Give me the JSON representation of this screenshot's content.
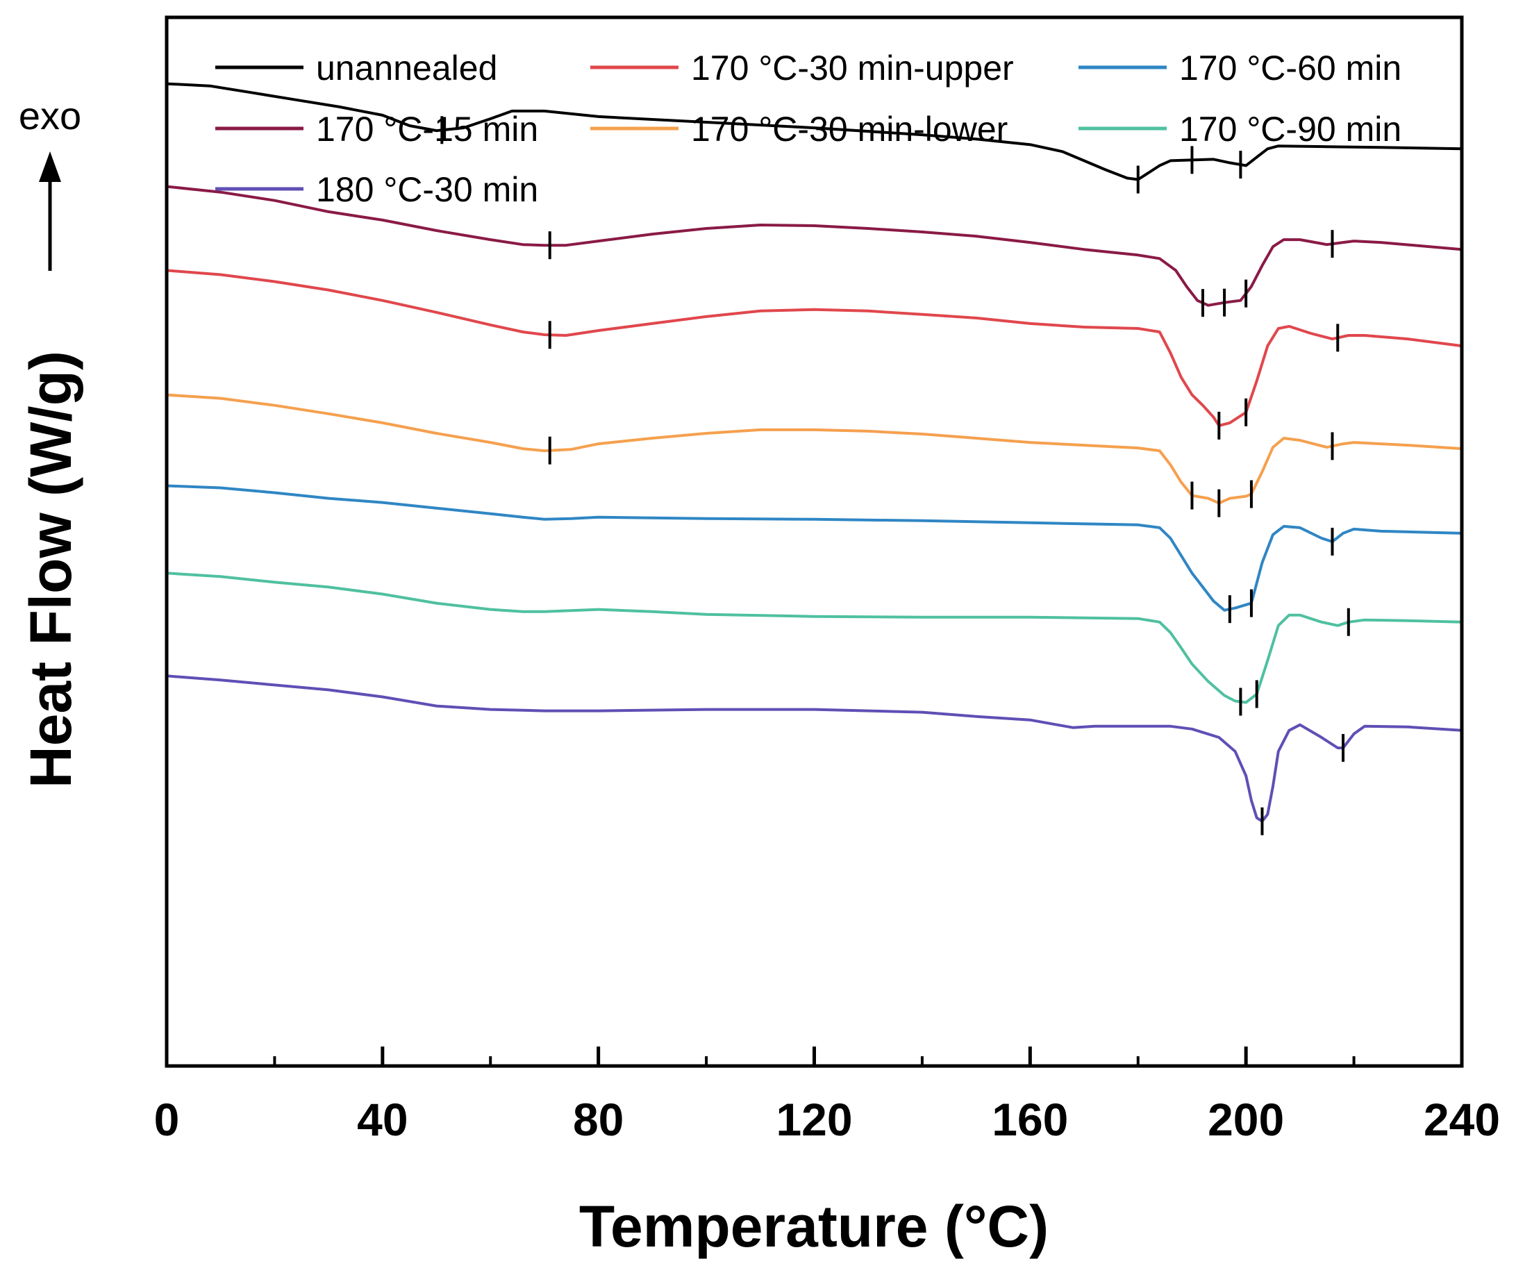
{
  "chart_data": {
    "type": "line",
    "title": "",
    "xlabel": "Temperature (°C)",
    "ylabel": "Heat Flow (W/g)",
    "exo_label": "exo",
    "xlim": [
      0,
      240
    ],
    "xticks": [
      0,
      40,
      80,
      120,
      160,
      200,
      240
    ],
    "xtick_labels": [
      "0",
      "40",
      "80",
      "120",
      "160",
      "200",
      "240"
    ],
    "y_units": "arbitrary (curves vertically offset)",
    "ylim": [
      0,
      15
    ],
    "legend_position": "top",
    "series": [
      {
        "name": "unannealed",
        "color": "#000000",
        "points": [
          [
            0,
            14.05
          ],
          [
            8,
            14.02
          ],
          [
            16,
            13.92
          ],
          [
            24,
            13.82
          ],
          [
            32,
            13.72
          ],
          [
            40,
            13.6
          ],
          [
            45,
            13.45
          ],
          [
            50,
            13.38
          ],
          [
            55,
            13.42
          ],
          [
            60,
            13.55
          ],
          [
            64,
            13.66
          ],
          [
            70,
            13.66
          ],
          [
            80,
            13.58
          ],
          [
            100,
            13.5
          ],
          [
            120,
            13.42
          ],
          [
            140,
            13.32
          ],
          [
            150,
            13.26
          ],
          [
            160,
            13.18
          ],
          [
            166,
            13.08
          ],
          [
            170,
            12.95
          ],
          [
            174,
            12.82
          ],
          [
            178,
            12.7
          ],
          [
            180,
            12.68
          ],
          [
            182,
            12.78
          ],
          [
            184,
            12.88
          ],
          [
            186,
            12.95
          ],
          [
            190,
            12.96
          ],
          [
            194,
            12.97
          ],
          [
            197,
            12.92
          ],
          [
            200,
            12.88
          ],
          [
            202,
            13.0
          ],
          [
            204,
            13.12
          ],
          [
            206,
            13.16
          ],
          [
            215,
            13.15
          ],
          [
            225,
            13.14
          ],
          [
            240,
            13.12
          ]
        ],
        "markers": [
          51,
          180,
          190,
          199
        ]
      },
      {
        "name": "170 °C-15 min",
        "color": "#8a1a46",
        "points": [
          [
            0,
            12.58
          ],
          [
            10,
            12.5
          ],
          [
            20,
            12.38
          ],
          [
            30,
            12.22
          ],
          [
            40,
            12.1
          ],
          [
            50,
            11.95
          ],
          [
            60,
            11.82
          ],
          [
            66,
            11.75
          ],
          [
            70,
            11.74
          ],
          [
            74,
            11.74
          ],
          [
            80,
            11.8
          ],
          [
            90,
            11.9
          ],
          [
            100,
            11.98
          ],
          [
            110,
            12.03
          ],
          [
            120,
            12.02
          ],
          [
            130,
            11.98
          ],
          [
            140,
            11.93
          ],
          [
            150,
            11.87
          ],
          [
            160,
            11.78
          ],
          [
            170,
            11.68
          ],
          [
            180,
            11.6
          ],
          [
            184,
            11.55
          ],
          [
            187,
            11.38
          ],
          [
            189,
            11.15
          ],
          [
            191,
            10.95
          ],
          [
            193,
            10.88
          ],
          [
            196,
            10.92
          ],
          [
            199,
            10.95
          ],
          [
            201,
            11.15
          ],
          [
            203,
            11.45
          ],
          [
            205,
            11.72
          ],
          [
            207,
            11.82
          ],
          [
            210,
            11.82
          ],
          [
            215,
            11.75
          ],
          [
            218,
            11.78
          ],
          [
            220,
            11.8
          ],
          [
            225,
            11.78
          ],
          [
            240,
            11.68
          ]
        ],
        "markers": [
          71,
          192,
          196,
          200,
          216
        ]
      },
      {
        "name": "170 °C-30 min-upper",
        "color": "#e0474c",
        "points": [
          [
            0,
            11.38
          ],
          [
            10,
            11.32
          ],
          [
            20,
            11.22
          ],
          [
            30,
            11.1
          ],
          [
            40,
            10.95
          ],
          [
            50,
            10.78
          ],
          [
            60,
            10.6
          ],
          [
            66,
            10.5
          ],
          [
            70,
            10.46
          ],
          [
            74,
            10.45
          ],
          [
            80,
            10.52
          ],
          [
            90,
            10.62
          ],
          [
            100,
            10.72
          ],
          [
            110,
            10.8
          ],
          [
            120,
            10.82
          ],
          [
            130,
            10.8
          ],
          [
            140,
            10.75
          ],
          [
            150,
            10.7
          ],
          [
            160,
            10.62
          ],
          [
            170,
            10.57
          ],
          [
            180,
            10.55
          ],
          [
            184,
            10.5
          ],
          [
            186,
            10.2
          ],
          [
            188,
            9.85
          ],
          [
            190,
            9.6
          ],
          [
            192,
            9.45
          ],
          [
            194,
            9.28
          ],
          [
            195,
            9.16
          ],
          [
            197,
            9.2
          ],
          [
            199,
            9.3
          ],
          [
            200,
            9.35
          ],
          [
            202,
            9.8
          ],
          [
            204,
            10.3
          ],
          [
            206,
            10.55
          ],
          [
            208,
            10.58
          ],
          [
            212,
            10.48
          ],
          [
            216,
            10.4
          ],
          [
            219,
            10.45
          ],
          [
            222,
            10.45
          ],
          [
            230,
            10.4
          ],
          [
            240,
            10.3
          ]
        ],
        "markers": [
          71,
          195,
          200,
          217
        ]
      },
      {
        "name": "170 °C-30 min-lower",
        "color": "#f5a04e",
        "points": [
          [
            0,
            9.6
          ],
          [
            10,
            9.55
          ],
          [
            20,
            9.45
          ],
          [
            30,
            9.33
          ],
          [
            40,
            9.2
          ],
          [
            50,
            9.05
          ],
          [
            60,
            8.92
          ],
          [
            66,
            8.83
          ],
          [
            70,
            8.8
          ],
          [
            75,
            8.82
          ],
          [
            80,
            8.9
          ],
          [
            90,
            8.98
          ],
          [
            100,
            9.05
          ],
          [
            110,
            9.1
          ],
          [
            120,
            9.1
          ],
          [
            130,
            9.08
          ],
          [
            140,
            9.04
          ],
          [
            150,
            8.98
          ],
          [
            160,
            8.92
          ],
          [
            170,
            8.88
          ],
          [
            180,
            8.84
          ],
          [
            184,
            8.8
          ],
          [
            186,
            8.6
          ],
          [
            188,
            8.35
          ],
          [
            190,
            8.16
          ],
          [
            193,
            8.12
          ],
          [
            195,
            8.05
          ],
          [
            197,
            8.12
          ],
          [
            200,
            8.15
          ],
          [
            201,
            8.18
          ],
          [
            203,
            8.5
          ],
          [
            205,
            8.85
          ],
          [
            207,
            8.98
          ],
          [
            210,
            8.95
          ],
          [
            215,
            8.85
          ],
          [
            218,
            8.9
          ],
          [
            220,
            8.92
          ],
          [
            230,
            8.88
          ],
          [
            240,
            8.83
          ]
        ],
        "markers": [
          71,
          190,
          195,
          201,
          216
        ]
      },
      {
        "name": "170 °C-60 min",
        "color": "#2f86c4",
        "points": [
          [
            0,
            8.3
          ],
          [
            10,
            8.27
          ],
          [
            20,
            8.2
          ],
          [
            30,
            8.12
          ],
          [
            40,
            8.06
          ],
          [
            50,
            7.98
          ],
          [
            60,
            7.9
          ],
          [
            66,
            7.85
          ],
          [
            70,
            7.82
          ],
          [
            75,
            7.83
          ],
          [
            80,
            7.85
          ],
          [
            100,
            7.83
          ],
          [
            120,
            7.82
          ],
          [
            140,
            7.8
          ],
          [
            160,
            7.77
          ],
          [
            180,
            7.74
          ],
          [
            184,
            7.7
          ],
          [
            186,
            7.55
          ],
          [
            188,
            7.3
          ],
          [
            190,
            7.05
          ],
          [
            192,
            6.85
          ],
          [
            194,
            6.65
          ],
          [
            196,
            6.52
          ],
          [
            198,
            6.55
          ],
          [
            201,
            6.62
          ],
          [
            203,
            7.2
          ],
          [
            205,
            7.6
          ],
          [
            207,
            7.72
          ],
          [
            210,
            7.7
          ],
          [
            214,
            7.55
          ],
          [
            216,
            7.5
          ],
          [
            218,
            7.62
          ],
          [
            220,
            7.68
          ],
          [
            225,
            7.65
          ],
          [
            240,
            7.62
          ]
        ],
        "markers": [
          197,
          201,
          216
        ]
      },
      {
        "name": "170 °C-90 min",
        "color": "#4fc0a0",
        "points": [
          [
            0,
            7.05
          ],
          [
            10,
            7.0
          ],
          [
            20,
            6.92
          ],
          [
            30,
            6.85
          ],
          [
            40,
            6.75
          ],
          [
            50,
            6.62
          ],
          [
            60,
            6.53
          ],
          [
            66,
            6.5
          ],
          [
            70,
            6.5
          ],
          [
            80,
            6.53
          ],
          [
            90,
            6.5
          ],
          [
            100,
            6.46
          ],
          [
            120,
            6.43
          ],
          [
            140,
            6.42
          ],
          [
            160,
            6.42
          ],
          [
            180,
            6.4
          ],
          [
            184,
            6.35
          ],
          [
            186,
            6.2
          ],
          [
            188,
            5.98
          ],
          [
            190,
            5.75
          ],
          [
            193,
            5.5
          ],
          [
            196,
            5.3
          ],
          [
            198,
            5.22
          ],
          [
            200,
            5.2
          ],
          [
            202,
            5.32
          ],
          [
            204,
            5.8
          ],
          [
            206,
            6.3
          ],
          [
            208,
            6.45
          ],
          [
            210,
            6.45
          ],
          [
            214,
            6.35
          ],
          [
            217,
            6.3
          ],
          [
            219,
            6.35
          ],
          [
            222,
            6.38
          ],
          [
            230,
            6.37
          ],
          [
            240,
            6.35
          ]
        ],
        "markers": [
          199,
          202,
          219
        ]
      },
      {
        "name": "180 °C-30 min",
        "color": "#5f4fb5",
        "points": [
          [
            0,
            5.58
          ],
          [
            10,
            5.52
          ],
          [
            20,
            5.45
          ],
          [
            30,
            5.38
          ],
          [
            40,
            5.28
          ],
          [
            50,
            5.15
          ],
          [
            60,
            5.1
          ],
          [
            70,
            5.08
          ],
          [
            80,
            5.08
          ],
          [
            100,
            5.1
          ],
          [
            120,
            5.1
          ],
          [
            140,
            5.06
          ],
          [
            150,
            5.0
          ],
          [
            160,
            4.95
          ],
          [
            165,
            4.88
          ],
          [
            168,
            4.84
          ],
          [
            172,
            4.86
          ],
          [
            180,
            4.86
          ],
          [
            186,
            4.86
          ],
          [
            190,
            4.82
          ],
          [
            195,
            4.7
          ],
          [
            198,
            4.5
          ],
          [
            200,
            4.15
          ],
          [
            201,
            3.8
          ],
          [
            202,
            3.55
          ],
          [
            203,
            3.5
          ],
          [
            204,
            3.6
          ],
          [
            205,
            4.0
          ],
          [
            206,
            4.5
          ],
          [
            208,
            4.8
          ],
          [
            210,
            4.88
          ],
          [
            214,
            4.7
          ],
          [
            217,
            4.55
          ],
          [
            218,
            4.55
          ],
          [
            220,
            4.75
          ],
          [
            222,
            4.86
          ],
          [
            230,
            4.85
          ],
          [
            240,
            4.8
          ]
        ],
        "markers": [
          203,
          218
        ]
      }
    ]
  }
}
